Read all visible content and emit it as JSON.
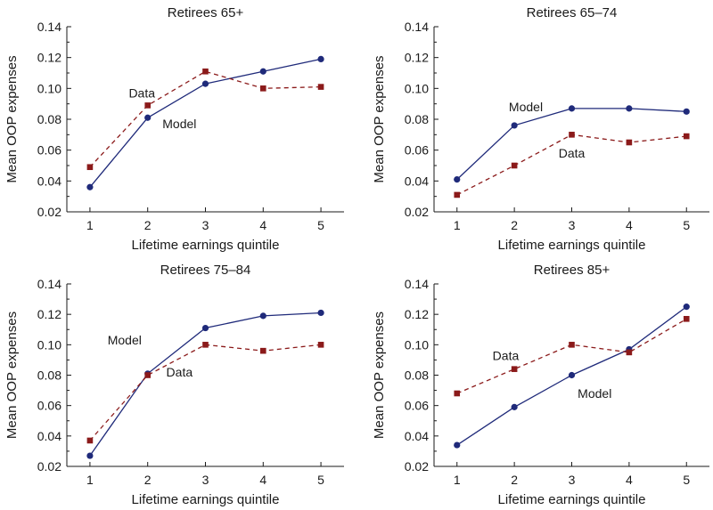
{
  "chart_data": [
    {
      "type": "line",
      "title": "Retirees 65+",
      "xlabel": "Lifetime earnings quintile",
      "ylabel": "Mean OOP expenses",
      "x": [
        1,
        2,
        3,
        4,
        5
      ],
      "x_ticks": [
        "1",
        "2",
        "3",
        "4",
        "5"
      ],
      "ylim": [
        0.02,
        0.14
      ],
      "y_ticks": [
        "0.02",
        "0.04",
        "0.06",
        "0.08",
        "0.10",
        "0.12",
        "0.14"
      ],
      "grid": false,
      "series": [
        {
          "name": "Model",
          "values": [
            0.036,
            0.081,
            0.103,
            0.111,
            0.119
          ],
          "color": "#1f2a7a",
          "style": "solid",
          "marker": "circle"
        },
        {
          "name": "Data",
          "values": [
            0.049,
            0.089,
            0.111,
            0.1,
            0.101
          ],
          "color": "#8b1a1a",
          "style": "dashed",
          "marker": "square"
        }
      ],
      "annotations": [
        {
          "text": "Data",
          "x": 1.9,
          "y": 0.097
        },
        {
          "text": "Model",
          "x": 2.55,
          "y": 0.077
        }
      ]
    },
    {
      "type": "line",
      "title": "Retirees 65–74",
      "xlabel": "Lifetime earnings quintile",
      "ylabel": "Mean OOP expenses",
      "x": [
        1,
        2,
        3,
        4,
        5
      ],
      "x_ticks": [
        "1",
        "2",
        "3",
        "4",
        "5"
      ],
      "ylim": [
        0.02,
        0.14
      ],
      "y_ticks": [
        "0.02",
        "0.04",
        "0.06",
        "0.08",
        "0.10",
        "0.12",
        "0.14"
      ],
      "grid": false,
      "series": [
        {
          "name": "Model",
          "values": [
            0.041,
            0.076,
            0.087,
            0.087,
            0.085
          ],
          "color": "#1f2a7a",
          "style": "solid",
          "marker": "circle"
        },
        {
          "name": "Data",
          "values": [
            0.031,
            0.05,
            0.07,
            0.065,
            0.069
          ],
          "color": "#8b1a1a",
          "style": "dashed",
          "marker": "square"
        }
      ],
      "annotations": [
        {
          "text": "Model",
          "x": 2.2,
          "y": 0.088
        },
        {
          "text": "Data",
          "x": 3.0,
          "y": 0.058
        }
      ]
    },
    {
      "type": "line",
      "title": "Retirees 75–84",
      "xlabel": "Lifetime earnings quintile",
      "ylabel": "Mean OOP expenses",
      "x": [
        1,
        2,
        3,
        4,
        5
      ],
      "x_ticks": [
        "1",
        "2",
        "3",
        "4",
        "5"
      ],
      "ylim": [
        0.02,
        0.14
      ],
      "y_ticks": [
        "0.02",
        "0.04",
        "0.06",
        "0.08",
        "0.10",
        "0.12",
        "0.14"
      ],
      "grid": false,
      "series": [
        {
          "name": "Model",
          "values": [
            0.027,
            0.081,
            0.111,
            0.119,
            0.121
          ],
          "color": "#1f2a7a",
          "style": "solid",
          "marker": "circle"
        },
        {
          "name": "Data",
          "values": [
            0.037,
            0.08,
            0.1,
            0.096,
            0.1
          ],
          "color": "#8b1a1a",
          "style": "dashed",
          "marker": "square"
        }
      ],
      "annotations": [
        {
          "text": "Model",
          "x": 1.6,
          "y": 0.103
        },
        {
          "text": "Data",
          "x": 2.55,
          "y": 0.082
        }
      ]
    },
    {
      "type": "line",
      "title": "Retirees 85+",
      "xlabel": "Lifetime earnings quintile",
      "ylabel": "Mean OOP expenses",
      "x": [
        1,
        2,
        3,
        4,
        5
      ],
      "x_ticks": [
        "1",
        "2",
        "3",
        "4",
        "5"
      ],
      "ylim": [
        0.02,
        0.14
      ],
      "y_ticks": [
        "0.02",
        "0.04",
        "0.06",
        "0.08",
        "0.10",
        "0.12",
        "0.14"
      ],
      "grid": false,
      "series": [
        {
          "name": "Model",
          "values": [
            0.034,
            0.059,
            0.08,
            0.097,
            0.125
          ],
          "color": "#1f2a7a",
          "style": "solid",
          "marker": "circle"
        },
        {
          "name": "Data",
          "values": [
            0.068,
            0.084,
            0.1,
            0.095,
            0.117
          ],
          "color": "#8b1a1a",
          "style": "dashed",
          "marker": "square"
        }
      ],
      "annotations": [
        {
          "text": "Data",
          "x": 1.85,
          "y": 0.093
        },
        {
          "text": "Model",
          "x": 3.4,
          "y": 0.068
        }
      ]
    }
  ]
}
